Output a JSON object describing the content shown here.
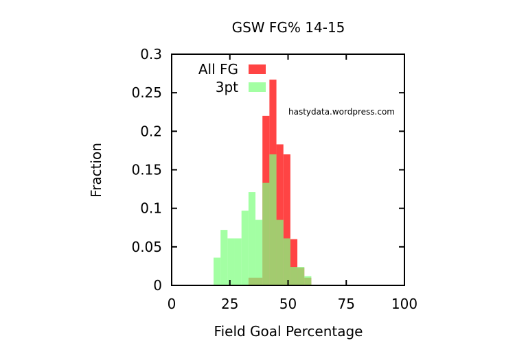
{
  "chart_data": {
    "type": "bar",
    "title": "GSW FG% 14-15",
    "xlabel": "Field Goal Percentage",
    "ylabel": "Fraction",
    "xlim": [
      0,
      100
    ],
    "ylim": [
      0,
      0.3
    ],
    "x_ticks": [
      0,
      25,
      50,
      75,
      100
    ],
    "x_tick_labels": [
      "0",
      "25",
      "50",
      "75",
      "100"
    ],
    "y_ticks": [
      0,
      0.05,
      0.1,
      0.15,
      0.2,
      0.25,
      0.3
    ],
    "y_tick_labels": [
      "0",
      "0.05",
      "0.1",
      "0.15",
      "0.2",
      "0.25",
      "0.3"
    ],
    "bin_width": 3,
    "legend_position": "top-left",
    "annotation": "hastydata.wordpress.com",
    "annotation_color": "#0000cc",
    "series": [
      {
        "name": "All FG",
        "color": "#ff4444",
        "bins": [
          {
            "x0": 33,
            "value": 0.01
          },
          {
            "x0": 36,
            "value": 0.01
          },
          {
            "x0": 39,
            "value": 0.22
          },
          {
            "x0": 42,
            "value": 0.267
          },
          {
            "x0": 45,
            "value": 0.183
          },
          {
            "x0": 48,
            "value": 0.17
          },
          {
            "x0": 51,
            "value": 0.06
          },
          {
            "x0": 54,
            "value": 0.023
          },
          {
            "x0": 57,
            "value": 0.01
          }
        ]
      },
      {
        "name": "3pt",
        "color": "#80ff80",
        "opacity": 0.72,
        "bins": [
          {
            "x0": 18,
            "value": 0.036
          },
          {
            "x0": 21,
            "value": 0.072
          },
          {
            "x0": 24,
            "value": 0.061
          },
          {
            "x0": 27,
            "value": 0.061
          },
          {
            "x0": 30,
            "value": 0.097
          },
          {
            "x0": 33,
            "value": 0.121
          },
          {
            "x0": 36,
            "value": 0.085
          },
          {
            "x0": 39,
            "value": 0.133
          },
          {
            "x0": 42,
            "value": 0.17
          },
          {
            "x0": 45,
            "value": 0.085
          },
          {
            "x0": 48,
            "value": 0.061
          },
          {
            "x0": 51,
            "value": 0.024
          },
          {
            "x0": 54,
            "value": 0.024
          },
          {
            "x0": 57,
            "value": 0.012
          }
        ]
      }
    ]
  }
}
